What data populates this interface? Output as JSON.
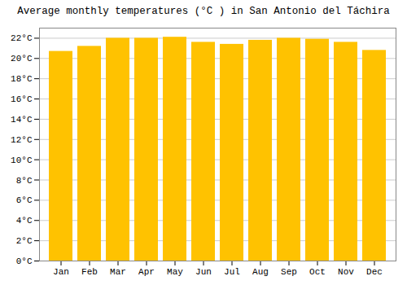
{
  "chart_data": {
    "type": "bar",
    "title": "Average monthly temperatures (°C ) in San Antonio del Táchira",
    "categories": [
      "Jan",
      "Feb",
      "Mar",
      "Apr",
      "May",
      "Jun",
      "Jul",
      "Aug",
      "Sep",
      "Oct",
      "Nov",
      "Dec"
    ],
    "values": [
      20.7,
      21.2,
      22.0,
      22.0,
      22.1,
      21.6,
      21.4,
      21.8,
      22.0,
      21.9,
      21.6,
      20.8
    ],
    "color": "#FFC200",
    "ylim": [
      0,
      23
    ],
    "yticks": [
      {
        "value": 0,
        "label": "0°C"
      },
      {
        "value": 2,
        "label": "2°C"
      },
      {
        "value": 4,
        "label": "4°C"
      },
      {
        "value": 6,
        "label": "6°C"
      },
      {
        "value": 8,
        "label": "8°C"
      },
      {
        "value": 10,
        "label": "10°C"
      },
      {
        "value": 12,
        "label": "12°C"
      },
      {
        "value": 14,
        "label": "14°C"
      },
      {
        "value": 16,
        "label": "16°C"
      },
      {
        "value": 18,
        "label": "18°C"
      },
      {
        "value": 20,
        "label": "20°C"
      },
      {
        "value": 22,
        "label": "22°C"
      }
    ],
    "grid": true
  }
}
